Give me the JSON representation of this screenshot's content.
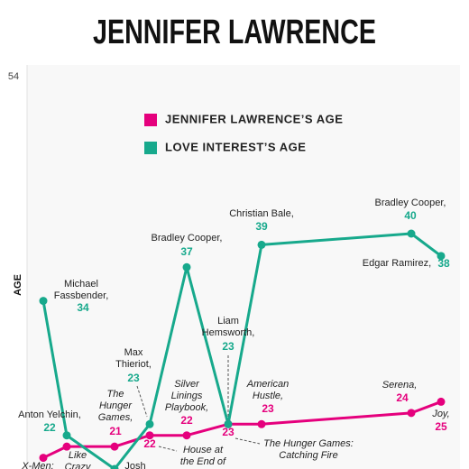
{
  "chart_data": {
    "type": "line",
    "title": "JENNIFER LAWRENCE",
    "ylabel": "AGE",
    "ylim": [
      19,
      54
    ],
    "yticks": [
      54
    ],
    "grid": false,
    "categories": [
      "X-Men:",
      "Like Crazy",
      "The Hunger Games,",
      "House at the End of",
      "Silver Linings Playbook,",
      "The Hunger Games: Catching Fire",
      "American Hustle,",
      "Serena,",
      "Joy,"
    ],
    "partner_names": [
      "Michael Fassbender,",
      "Anton Yelchin,",
      "Josh",
      "Max Thieriot,",
      "Bradley Cooper,",
      "Liam Hemsworth,",
      "Christian Bale,",
      "Bradley Cooper,",
      "Edgar Ramirez,"
    ],
    "series": [
      {
        "name": "JENNIFER LAWRENCE’S AGE",
        "color": "#e5007d",
        "values": [
          20,
          21,
          21,
          22,
          22,
          23,
          23,
          24,
          25
        ]
      },
      {
        "name": "LOVE INTEREST’S AGE",
        "color": "#17a98c",
        "values": [
          34,
          22,
          19,
          23,
          37,
          23,
          39,
          40,
          38
        ]
      }
    ]
  }
}
